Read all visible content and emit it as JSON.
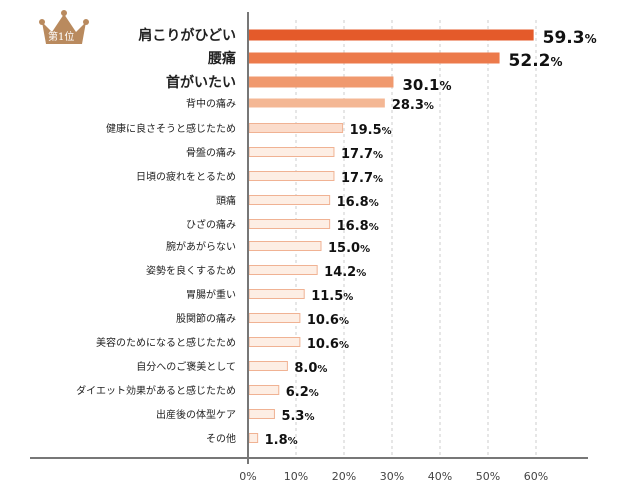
{
  "badge": {
    "text": "第1位",
    "color": "#b98a5e"
  },
  "chart_data": {
    "type": "bar",
    "orientation": "horizontal",
    "categories": [
      "肩こりがひどい",
      "腰痛",
      "首がいたい",
      "背中の痛み",
      "健康に良さそうと感じたため",
      "骨盤の痛み",
      "日頃の疲れをとるため",
      "頭痛",
      "ひざの痛み",
      "腕があがらない",
      "姿勢を良くするため",
      "胃腸が重い",
      "股関節の痛み",
      "美容のためになると感じたため",
      "自分へのご褒美として",
      "ダイエット効果があると感じたため",
      "出産後の体型ケア",
      "その他"
    ],
    "values": [
      59.3,
      52.2,
      30.1,
      28.3,
      19.5,
      17.7,
      17.7,
      16.8,
      16.8,
      15.0,
      14.2,
      11.5,
      10.6,
      10.6,
      8.0,
      6.2,
      5.3,
      1.8
    ],
    "value_labels": [
      "59.3",
      "52.2",
      "30.1",
      "28.3",
      "19.5",
      "17.7",
      "17.7",
      "16.8",
      "16.8",
      "15.0",
      "14.2",
      "11.5",
      "10.6",
      "10.6",
      "8.0",
      "6.2",
      "5.3",
      "1.8"
    ],
    "unit": "%",
    "xlim": [
      0,
      60
    ],
    "xticks": [
      "0%",
      "10%",
      "20%",
      "30%",
      "40%",
      "50%",
      "60%"
    ],
    "grid": true,
    "colors": [
      "#e45a2a",
      "#ec7a4b",
      "#f0996e",
      "#f4b794",
      "#fbdccb",
      "#fdeee4"
    ],
    "border_color": "#f0b293"
  }
}
